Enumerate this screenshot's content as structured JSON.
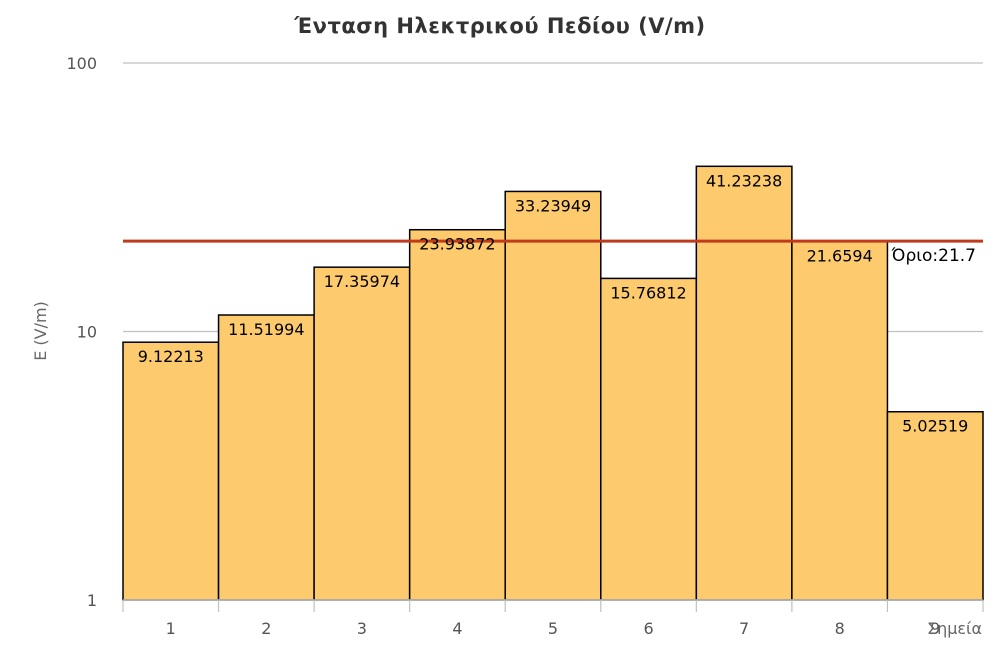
{
  "chart_data": {
    "type": "bar",
    "title": "Ένταση Ηλεκτρικού Πεδίου (V/m)",
    "xlabel": "Σημεία",
    "ylabel": "E (V/m)",
    "yscale": "log",
    "ylim": [
      1,
      100
    ],
    "yticks": [
      "1",
      "10",
      "100"
    ],
    "grid": true,
    "categories": [
      "1",
      "2",
      "3",
      "4",
      "5",
      "6",
      "7",
      "8",
      "9"
    ],
    "values": [
      9.12213,
      11.51994,
      17.35974,
      23.93872,
      33.23949,
      15.76812,
      41.23238,
      21.6594,
      5.02519
    ],
    "data_labels": [
      "9.12213",
      "11.51994",
      "17.35974",
      "23.93872",
      "33.23949",
      "15.76812",
      "41.23238",
      "21.6594",
      "5.02519"
    ],
    "limit": {
      "value": 21.7,
      "label": "Όριο:21.7",
      "color": "#c23a1c"
    },
    "colors": {
      "bar_fill": "#fdcb6e",
      "bar_stroke": "#000000",
      "grid": "#c0c0c0",
      "axis": "#c0c0c0"
    }
  }
}
